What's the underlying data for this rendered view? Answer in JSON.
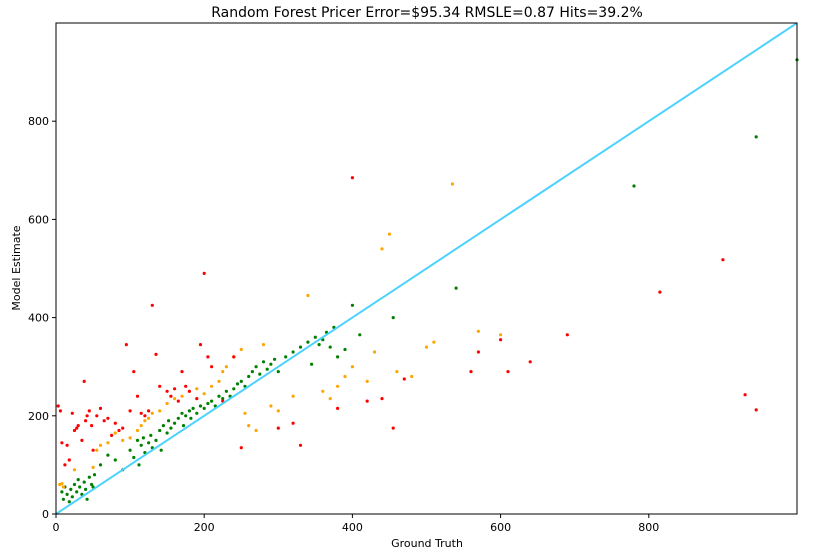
{
  "chart_data": {
    "type": "scatter",
    "title": "Random Forest Pricer Error=$95.34 RMSLE=0.87 Hits=39.2%",
    "xlabel": "Ground Truth",
    "ylabel": "Model Estimate",
    "xlim": [
      0,
      1000
    ],
    "ylim": [
      0,
      1000
    ],
    "xticks": [
      0,
      200,
      400,
      600,
      800
    ],
    "yticks": [
      0,
      200,
      400,
      600,
      800
    ],
    "grid": false,
    "colors": {
      "green": "#008000",
      "orange": "#ffa500",
      "red": "#ff0000",
      "line": "#4dd2ff"
    },
    "reference_line": {
      "x": [
        0,
        1000
      ],
      "y": [
        0,
        1000
      ]
    },
    "series": [
      {
        "color": "green",
        "points": [
          [
            8,
            45
          ],
          [
            10,
            30
          ],
          [
            12,
            55
          ],
          [
            15,
            40
          ],
          [
            18,
            25
          ],
          [
            20,
            50
          ],
          [
            22,
            35
          ],
          [
            25,
            60
          ],
          [
            28,
            45
          ],
          [
            30,
            70
          ],
          [
            32,
            55
          ],
          [
            35,
            40
          ],
          [
            38,
            65
          ],
          [
            40,
            50
          ],
          [
            42,
            30
          ],
          [
            45,
            75
          ],
          [
            48,
            60
          ],
          [
            50,
            55
          ],
          [
            52,
            80
          ],
          [
            60,
            100
          ],
          [
            70,
            120
          ],
          [
            80,
            110
          ],
          [
            90,
            90
          ],
          [
            100,
            130
          ],
          [
            105,
            115
          ],
          [
            110,
            150
          ],
          [
            112,
            100
          ],
          [
            115,
            140
          ],
          [
            118,
            155
          ],
          [
            120,
            125
          ],
          [
            125,
            145
          ],
          [
            128,
            160
          ],
          [
            130,
            135
          ],
          [
            135,
            150
          ],
          [
            140,
            170
          ],
          [
            142,
            130
          ],
          [
            145,
            180
          ],
          [
            150,
            165
          ],
          [
            152,
            190
          ],
          [
            155,
            175
          ],
          [
            160,
            185
          ],
          [
            165,
            195
          ],
          [
            170,
            205
          ],
          [
            172,
            180
          ],
          [
            175,
            200
          ],
          [
            180,
            210
          ],
          [
            182,
            195
          ],
          [
            185,
            215
          ],
          [
            190,
            205
          ],
          [
            195,
            220
          ],
          [
            200,
            215
          ],
          [
            205,
            225
          ],
          [
            210,
            230
          ],
          [
            215,
            220
          ],
          [
            220,
            240
          ],
          [
            225,
            235
          ],
          [
            230,
            250
          ],
          [
            235,
            240
          ],
          [
            240,
            255
          ],
          [
            245,
            265
          ],
          [
            250,
            270
          ],
          [
            255,
            260
          ],
          [
            260,
            280
          ],
          [
            265,
            290
          ],
          [
            270,
            300
          ],
          [
            275,
            285
          ],
          [
            280,
            310
          ],
          [
            285,
            295
          ],
          [
            290,
            305
          ],
          [
            295,
            315
          ],
          [
            300,
            290
          ],
          [
            310,
            320
          ],
          [
            320,
            330
          ],
          [
            330,
            340
          ],
          [
            340,
            350
          ],
          [
            345,
            305
          ],
          [
            350,
            360
          ],
          [
            355,
            345
          ],
          [
            360,
            355
          ],
          [
            365,
            370
          ],
          [
            370,
            340
          ],
          [
            375,
            380
          ],
          [
            380,
            320
          ],
          [
            390,
            335
          ],
          [
            400,
            425
          ],
          [
            410,
            365
          ],
          [
            455,
            400
          ],
          [
            540,
            460
          ],
          [
            780,
            668
          ],
          [
            945,
            768
          ],
          [
            1000,
            925
          ]
        ]
      },
      {
        "color": "orange",
        "points": [
          [
            5,
            60
          ],
          [
            8,
            62
          ],
          [
            10,
            55
          ],
          [
            25,
            90
          ],
          [
            50,
            95
          ],
          [
            55,
            130
          ],
          [
            60,
            140
          ],
          [
            70,
            145
          ],
          [
            80,
            165
          ],
          [
            90,
            150
          ],
          [
            100,
            155
          ],
          [
            110,
            170
          ],
          [
            115,
            180
          ],
          [
            120,
            190
          ],
          [
            125,
            195
          ],
          [
            130,
            205
          ],
          [
            140,
            210
          ],
          [
            150,
            225
          ],
          [
            160,
            235
          ],
          [
            170,
            240
          ],
          [
            180,
            250
          ],
          [
            190,
            255
          ],
          [
            200,
            245
          ],
          [
            210,
            260
          ],
          [
            220,
            270
          ],
          [
            225,
            290
          ],
          [
            230,
            300
          ],
          [
            240,
            320
          ],
          [
            250,
            335
          ],
          [
            255,
            205
          ],
          [
            260,
            180
          ],
          [
            270,
            170
          ],
          [
            280,
            345
          ],
          [
            290,
            220
          ],
          [
            300,
            210
          ],
          [
            320,
            240
          ],
          [
            340,
            445
          ],
          [
            360,
            250
          ],
          [
            370,
            235
          ],
          [
            380,
            260
          ],
          [
            390,
            280
          ],
          [
            400,
            300
          ],
          [
            420,
            270
          ],
          [
            430,
            330
          ],
          [
            440,
            540
          ],
          [
            450,
            570
          ],
          [
            460,
            290
          ],
          [
            480,
            280
          ],
          [
            500,
            340
          ],
          [
            510,
            350
          ],
          [
            535,
            672
          ],
          [
            570,
            372
          ],
          [
            600,
            365
          ]
        ]
      },
      {
        "color": "red",
        "points": [
          [
            3,
            220
          ],
          [
            6,
            210
          ],
          [
            8,
            145
          ],
          [
            12,
            100
          ],
          [
            15,
            140
          ],
          [
            18,
            110
          ],
          [
            22,
            205
          ],
          [
            25,
            170
          ],
          [
            28,
            175
          ],
          [
            30,
            180
          ],
          [
            35,
            150
          ],
          [
            38,
            270
          ],
          [
            40,
            190
          ],
          [
            42,
            200
          ],
          [
            45,
            210
          ],
          [
            48,
            180
          ],
          [
            50,
            130
          ],
          [
            55,
            200
          ],
          [
            60,
            215
          ],
          [
            65,
            190
          ],
          [
            70,
            195
          ],
          [
            75,
            160
          ],
          [
            80,
            185
          ],
          [
            85,
            170
          ],
          [
            90,
            175
          ],
          [
            95,
            345
          ],
          [
            100,
            210
          ],
          [
            105,
            290
          ],
          [
            110,
            240
          ],
          [
            115,
            205
          ],
          [
            120,
            200
          ],
          [
            125,
            210
          ],
          [
            130,
            425
          ],
          [
            135,
            325
          ],
          [
            140,
            260
          ],
          [
            150,
            250
          ],
          [
            155,
            240
          ],
          [
            160,
            255
          ],
          [
            165,
            230
          ],
          [
            170,
            290
          ],
          [
            175,
            260
          ],
          [
            180,
            250
          ],
          [
            190,
            235
          ],
          [
            195,
            345
          ],
          [
            200,
            490
          ],
          [
            205,
            320
          ],
          [
            210,
            300
          ],
          [
            225,
            230
          ],
          [
            240,
            320
          ],
          [
            250,
            135
          ],
          [
            300,
            175
          ],
          [
            320,
            185
          ],
          [
            330,
            140
          ],
          [
            380,
            215
          ],
          [
            400,
            685
          ],
          [
            420,
            230
          ],
          [
            440,
            235
          ],
          [
            455,
            175
          ],
          [
            470,
            275
          ],
          [
            560,
            290
          ],
          [
            570,
            330
          ],
          [
            600,
            355
          ],
          [
            610,
            290
          ],
          [
            640,
            310
          ],
          [
            690,
            365
          ],
          [
            815,
            452
          ],
          [
            900,
            518
          ],
          [
            930,
            243
          ],
          [
            945,
            212
          ]
        ]
      }
    ]
  }
}
